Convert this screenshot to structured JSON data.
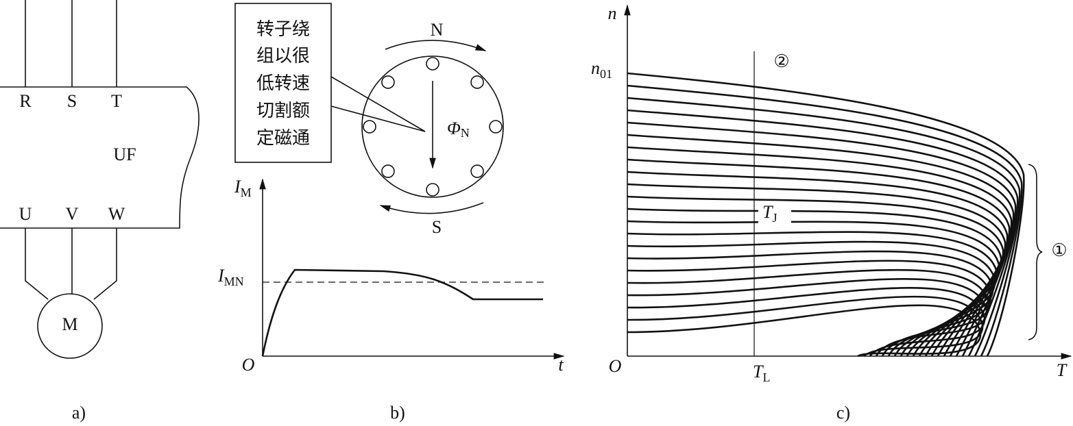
{
  "panel_a": {
    "terminals_in": [
      "R",
      "S",
      "T"
    ],
    "unit": "UF",
    "terminals_out": [
      "U",
      "V",
      "W"
    ],
    "motor": "M",
    "caption": "a)"
  },
  "panel_b": {
    "callout_lines": [
      "转子绕",
      "组以很",
      "低转速",
      "切割额",
      "定磁通"
    ],
    "north": "N",
    "south": "S",
    "flux": {
      "symbol": "Φ",
      "sub": "N"
    },
    "y_axis": {
      "symbol": "I",
      "sub": "M"
    },
    "rated_current": {
      "symbol": "I",
      "sub": "MN"
    },
    "origin": "O",
    "x_axis": "t",
    "caption": "b)"
  },
  "panel_c": {
    "y_axis": "n",
    "sync_speed": {
      "symbol": "n",
      "sub": "01"
    },
    "marker_2": "②",
    "torque_j": {
      "symbol": "T",
      "sub": "J"
    },
    "marker_1": "①",
    "origin": "O",
    "load_torque": {
      "symbol": "T",
      "sub": "L"
    },
    "x_axis": "T",
    "caption": "c)"
  }
}
